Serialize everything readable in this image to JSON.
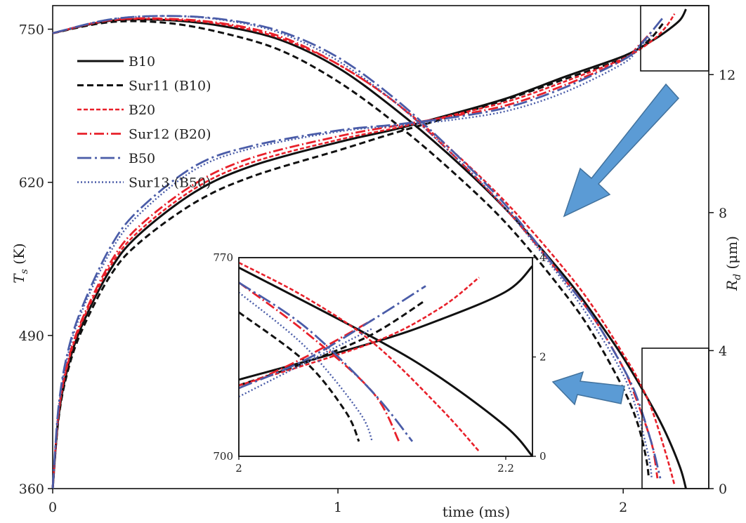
{
  "chart_data": {
    "type": "line",
    "xlabel": "time (ms)",
    "ylabel_left": "T_s (K)",
    "ylabel_right": "R_d (μm)",
    "xlim": [
      0,
      2.3
    ],
    "ylim_left": [
      360,
      770
    ],
    "ylim_right": [
      0,
      14
    ],
    "x_ticks": [
      "0",
      "1",
      "2"
    ],
    "y_left_ticks": [
      "360",
      "490",
      "620",
      "750"
    ],
    "y_right_ticks": [
      "0",
      "4",
      "8",
      "12"
    ],
    "grid": false,
    "legend_position": "top-left",
    "series": [
      {
        "name": "B10",
        "color": "#111111",
        "dash": "solid",
        "T_s": {
          "x": [
            0,
            0.02,
            0.05,
            0.1,
            0.2,
            0.3,
            0.5,
            0.7,
            1.0,
            1.2,
            1.4,
            1.6,
            1.8,
            2.0,
            2.1,
            2.15,
            2.2,
            2.22
          ],
          "y": [
            360,
            420,
            460,
            497,
            545,
            575,
            612,
            634,
            654,
            665,
            678,
            692,
            710,
            727,
            740,
            748,
            758,
            767
          ]
        },
        "R_d": {
          "x": [
            0,
            0.2,
            0.4,
            0.6,
            0.8,
            1.0,
            1.2,
            1.4,
            1.6,
            1.8,
            1.9,
            2.0,
            2.1,
            2.15,
            2.2,
            2.22
          ],
          "y": [
            13.2,
            13.56,
            13.58,
            13.4,
            13.0,
            12.2,
            11.0,
            9.6,
            8.0,
            6.1,
            5.0,
            3.8,
            2.4,
            1.6,
            0.6,
            0
          ]
        }
      },
      {
        "name": "Sur11 (B10)",
        "color": "#111111",
        "dash": "dash",
        "T_s": {
          "x": [
            0,
            0.02,
            0.05,
            0.1,
            0.2,
            0.3,
            0.5,
            0.7,
            1.0,
            1.2,
            1.4,
            1.6,
            1.8,
            2.0,
            2.05,
            2.1,
            2.14
          ],
          "y": [
            360,
            418,
            457,
            493,
            540,
            568,
            603,
            625,
            647,
            662,
            676,
            691,
            708,
            725,
            733,
            743,
            755
          ]
        },
        "R_d": {
          "x": [
            0,
            0.2,
            0.4,
            0.6,
            0.8,
            1.0,
            1.2,
            1.4,
            1.6,
            1.8,
            1.9,
            2.0,
            2.05,
            2.08,
            2.09
          ],
          "y": [
            13.2,
            13.52,
            13.5,
            13.2,
            12.7,
            11.8,
            10.6,
            9.2,
            7.6,
            5.6,
            4.4,
            2.9,
            1.9,
            0.9,
            0.3
          ]
        }
      },
      {
        "name": "B20",
        "color": "#e8202a",
        "dash": "dash-red",
        "T_s": {
          "x": [
            0,
            0.02,
            0.05,
            0.1,
            0.2,
            0.3,
            0.5,
            0.7,
            1.0,
            1.2,
            1.4,
            1.6,
            1.8,
            2.0,
            2.1,
            2.15,
            2.18
          ],
          "y": [
            360,
            422,
            463,
            500,
            548,
            578,
            615,
            637,
            656,
            666,
            677,
            689,
            706,
            725,
            740,
            752,
            763
          ]
        },
        "R_d": {
          "x": [
            0,
            0.2,
            0.4,
            0.6,
            0.8,
            1.0,
            1.2,
            1.4,
            1.6,
            1.8,
            1.9,
            2.0,
            2.05,
            2.1,
            2.15,
            2.18
          ],
          "y": [
            13.2,
            13.57,
            13.6,
            13.45,
            13.05,
            12.3,
            11.2,
            9.8,
            8.2,
            6.3,
            5.2,
            3.9,
            3.2,
            2.3,
            1.0,
            0.1
          ]
        }
      },
      {
        "name": "Sur12 (B20)",
        "color": "#e8202a",
        "dash": "dashdot",
        "T_s": {
          "x": [
            0,
            0.02,
            0.05,
            0.1,
            0.2,
            0.3,
            0.5,
            0.7,
            1.0,
            1.2,
            1.4,
            1.6,
            1.8,
            2.0,
            2.05,
            2.1
          ],
          "y": [
            360,
            423,
            465,
            502,
            551,
            582,
            619,
            641,
            659,
            668,
            676,
            686,
            703,
            724,
            735,
            748
          ]
        },
        "R_d": {
          "x": [
            0,
            0.2,
            0.4,
            0.6,
            0.8,
            1.0,
            1.2,
            1.4,
            1.6,
            1.8,
            1.9,
            2.0,
            2.05,
            2.1,
            2.12
          ],
          "y": [
            13.2,
            13.58,
            13.62,
            13.48,
            13.1,
            12.3,
            11.2,
            9.7,
            8.0,
            6.0,
            4.9,
            3.5,
            2.5,
            1.3,
            0.3
          ]
        }
      },
      {
        "name": "B50",
        "color": "#4a5ca8",
        "dash": "longdashdot",
        "T_s": {
          "x": [
            0,
            0.02,
            0.05,
            0.1,
            0.2,
            0.3,
            0.5,
            0.7,
            1.0,
            1.2,
            1.4,
            1.6,
            1.8,
            2.0,
            2.05,
            2.1,
            2.14
          ],
          "y": [
            360,
            428,
            473,
            512,
            564,
            596,
            634,
            651,
            664,
            669,
            675,
            684,
            701,
            724,
            734,
            748,
            760
          ]
        },
        "R_d": {
          "x": [
            0,
            0.2,
            0.4,
            0.6,
            0.8,
            1.0,
            1.2,
            1.4,
            1.6,
            1.8,
            1.9,
            2.0,
            2.05,
            2.1,
            2.13
          ],
          "y": [
            13.2,
            13.6,
            13.7,
            13.6,
            13.25,
            12.5,
            11.3,
            9.8,
            8.1,
            6.0,
            4.9,
            3.5,
            2.6,
            1.3,
            0.3
          ]
        }
      },
      {
        "name": "Sur13 (B50)",
        "color": "#4a5ca8",
        "dash": "dot",
        "T_s": {
          "x": [
            0,
            0.02,
            0.05,
            0.1,
            0.2,
            0.3,
            0.5,
            0.7,
            1.0,
            1.2,
            1.4,
            1.6,
            1.8,
            2.0,
            2.05,
            2.1
          ],
          "y": [
            360,
            426,
            470,
            509,
            560,
            592,
            631,
            649,
            663,
            668,
            673,
            681,
            697,
            721,
            733,
            745
          ]
        },
        "R_d": {
          "x": [
            0,
            0.2,
            0.4,
            0.6,
            0.8,
            1.0,
            1.2,
            1.4,
            1.6,
            1.8,
            1.9,
            2.0,
            2.05,
            2.09,
            2.1
          ],
          "y": [
            13.2,
            13.6,
            13.7,
            13.58,
            13.2,
            12.4,
            11.2,
            9.7,
            8.0,
            5.9,
            4.7,
            3.3,
            2.2,
            0.9,
            0.3
          ]
        }
      }
    ],
    "inset": {
      "xlim": [
        2,
        2.22
      ],
      "ylim_left": [
        700,
        770
      ],
      "ylim_right": [
        0,
        4
      ],
      "x_ticks": [
        "2",
        "2.2"
      ],
      "y_left_ticks": [
        "700",
        "770"
      ],
      "y_right_ticks": [
        "0",
        "2",
        "4"
      ]
    }
  }
}
